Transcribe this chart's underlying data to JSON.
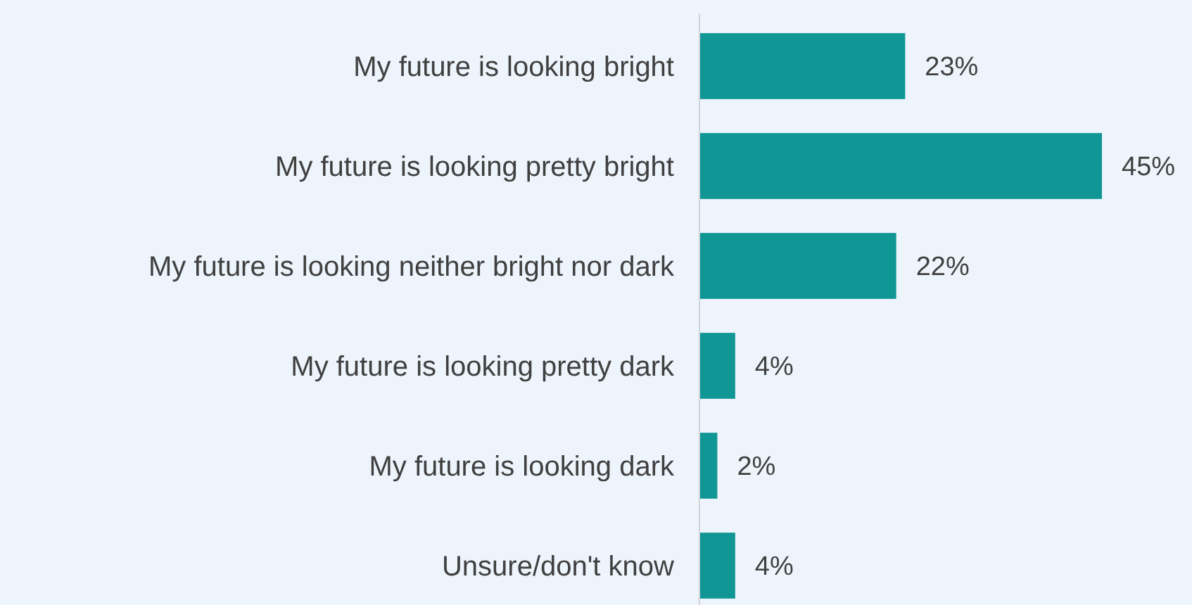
{
  "chart_data": {
    "type": "bar",
    "orientation": "horizontal",
    "categories": [
      "My future is looking bright",
      "My future is looking pretty bright",
      "My future is looking neither bright nor dark",
      "My future is looking pretty dark",
      "My future is looking dark",
      "Unsure/don't know"
    ],
    "values": [
      23,
      45,
      22,
      4,
      2,
      4
    ],
    "color": "#109795",
    "value_labels": [
      "23%",
      "45%",
      "22%",
      "4%",
      "2%",
      "4%"
    ]
  }
}
